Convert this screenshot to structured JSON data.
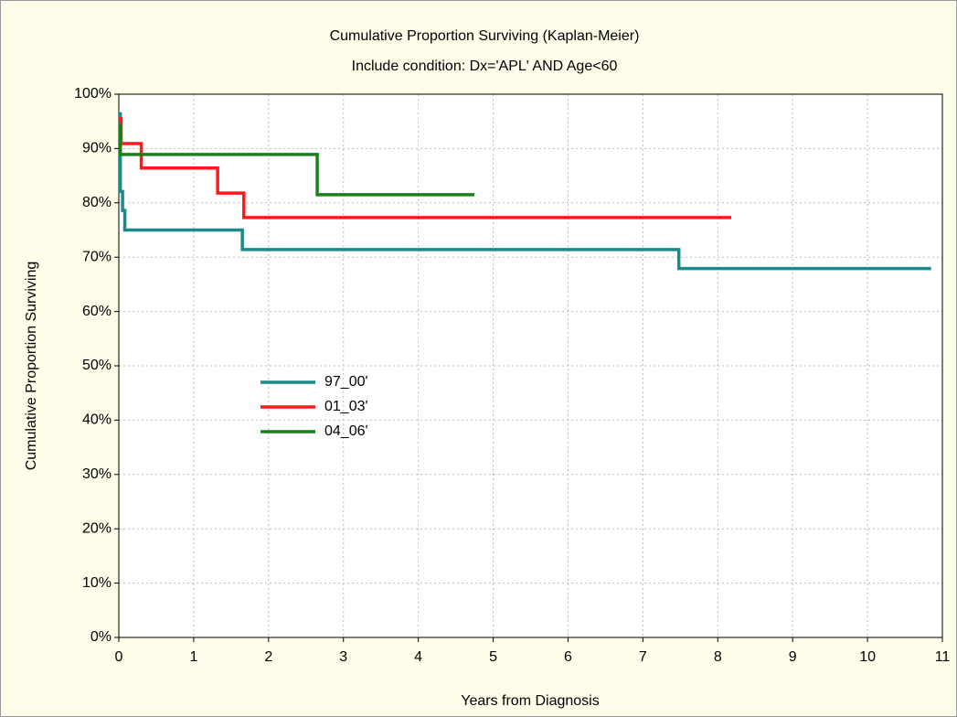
{
  "chart_data": {
    "type": "line",
    "step": "post",
    "title": "Cumulative Proportion Surviving (Kaplan-Meier)",
    "subtitle": "Include condition: Dx='APL' AND Age<60",
    "x_label": "Years from Diagnosis",
    "y_label": "Cumulative Proportion Surviving",
    "xlim": [
      0,
      11
    ],
    "xticks": [
      0,
      1,
      2,
      3,
      4,
      5,
      6,
      7,
      8,
      9,
      10,
      11
    ],
    "ylim": [
      0,
      100
    ],
    "yticks": [
      {
        "value": 0,
        "label": "0%"
      },
      {
        "value": 10,
        "label": "10%"
      },
      {
        "value": 20,
        "label": "20%"
      },
      {
        "value": 30,
        "label": "30%"
      },
      {
        "value": 40,
        "label": "40%"
      },
      {
        "value": 50,
        "label": "50%"
      },
      {
        "value": 60,
        "label": "60%"
      },
      {
        "value": 70,
        "label": "70%"
      },
      {
        "value": 80,
        "label": "80%"
      },
      {
        "value": 90,
        "label": "90%"
      },
      {
        "value": 100,
        "label": "100%"
      }
    ],
    "grid": true,
    "series": [
      {
        "name": "97_00'",
        "color": "#1a8a8a",
        "x": [
          0,
          0.02,
          0.05,
          0.08,
          1.65,
          7.48,
          10.85
        ],
        "values": [
          96.4,
          82.1,
          78.6,
          75.0,
          71.4,
          67.9,
          67.9
        ]
      },
      {
        "name": "01_03'",
        "color": "#ff1a1a",
        "x": [
          0,
          0.03,
          0.3,
          1.32,
          1.67,
          8.18
        ],
        "values": [
          95.5,
          90.9,
          86.4,
          81.8,
          77.3,
          77.3
        ]
      },
      {
        "name": "04_06'",
        "color": "#1a801a",
        "x": [
          0,
          0.02,
          2.65,
          4.75
        ],
        "values": [
          94.1,
          88.9,
          81.5,
          81.5
        ]
      }
    ]
  }
}
